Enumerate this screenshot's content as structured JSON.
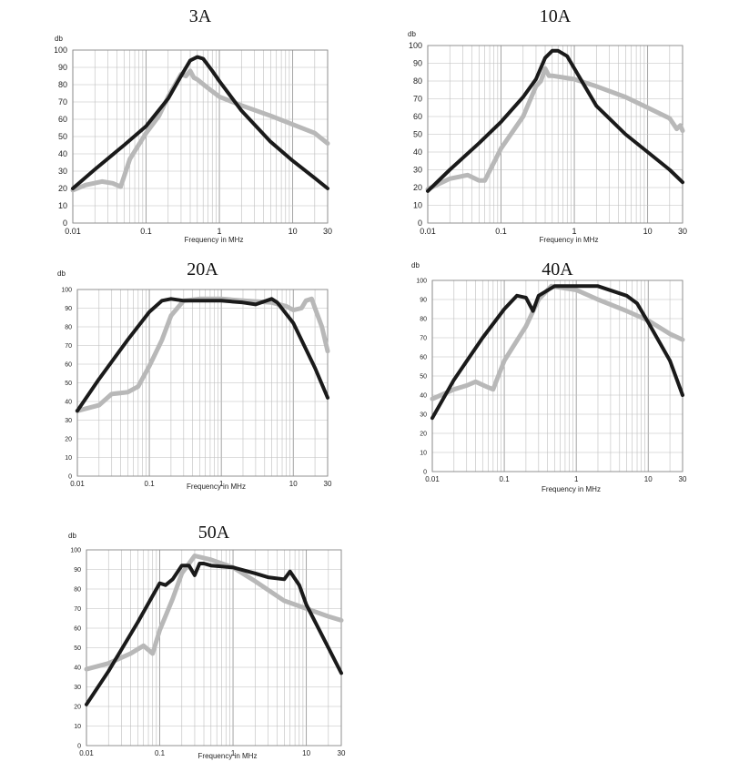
{
  "chart_data": [
    {
      "type": "line",
      "title": "3A",
      "ylabel": "db",
      "xlabel": "Frequency in MHz",
      "x_scale": "log",
      "xlim": [
        0.01,
        30
      ],
      "ylim": [
        0,
        100
      ],
      "grid": true,
      "x_ticks": [
        "0.01",
        "0.1",
        "1",
        "10",
        "30"
      ],
      "y_ticks": [
        "0",
        "10",
        "20",
        "30",
        "40",
        "50",
        "60",
        "70",
        "80",
        "90",
        "100"
      ],
      "series": [
        {
          "color": "#1a1a1a",
          "x": [
            0.01,
            0.02,
            0.05,
            0.1,
            0.2,
            0.3,
            0.4,
            0.5,
            0.6,
            0.8,
            1,
            2,
            5,
            10,
            20,
            30
          ],
          "y": [
            20,
            31,
            45,
            56,
            72,
            85,
            94,
            96,
            95,
            88,
            82,
            65,
            47,
            36,
            26,
            20
          ]
        },
        {
          "color": "#b8b8b8",
          "x": [
            0.01,
            0.015,
            0.025,
            0.035,
            0.045,
            0.06,
            0.1,
            0.15,
            0.2,
            0.3,
            0.35,
            0.4,
            0.45,
            0.5,
            0.7,
            1,
            2,
            5,
            10,
            20,
            30
          ],
          "y": [
            19,
            22,
            24,
            23,
            21,
            37,
            52,
            62,
            73,
            86,
            85,
            88,
            84,
            83,
            78,
            73,
            68,
            62,
            57,
            52,
            46
          ]
        }
      ]
    },
    {
      "type": "line",
      "title": "10A",
      "ylabel": "db",
      "xlabel": "Frequency in MHz",
      "x_scale": "log",
      "xlim": [
        0.01,
        30
      ],
      "ylim": [
        0,
        100
      ],
      "grid": true,
      "x_ticks": [
        "0.01",
        "0.1",
        "1",
        "10",
        "30"
      ],
      "y_ticks": [
        "0",
        "10",
        "20",
        "30",
        "40",
        "50",
        "60",
        "70",
        "80",
        "90",
        "100"
      ],
      "series": [
        {
          "color": "#1a1a1a",
          "x": [
            0.01,
            0.02,
            0.05,
            0.1,
            0.2,
            0.3,
            0.4,
            0.5,
            0.6,
            0.8,
            1,
            2,
            5,
            10,
            20,
            30
          ],
          "y": [
            18,
            30,
            45,
            57,
            71,
            81,
            93,
            97,
            97,
            94,
            87,
            66,
            50,
            40,
            30,
            23
          ]
        },
        {
          "color": "#b8b8b8",
          "x": [
            0.01,
            0.02,
            0.035,
            0.05,
            0.06,
            0.1,
            0.2,
            0.3,
            0.35,
            0.4,
            0.45,
            0.5,
            1,
            2,
            5,
            10,
            20,
            25,
            28,
            30
          ],
          "y": [
            19,
            25,
            27,
            24,
            24,
            42,
            60,
            77,
            80,
            87,
            83,
            83,
            81,
            77,
            71,
            65,
            59,
            53,
            55,
            52
          ]
        }
      ]
    },
    {
      "type": "line",
      "title": "20A",
      "ylabel": "db",
      "xlabel": "Frequency in MHz",
      "x_scale": "log",
      "xlim": [
        0.01,
        30
      ],
      "ylim": [
        0,
        100
      ],
      "grid": true,
      "x_ticks": [
        "0.01",
        "0.1",
        "1",
        "10",
        "30"
      ],
      "y_ticks": [
        "0",
        "10",
        "20",
        "30",
        "40",
        "50",
        "60",
        "70",
        "80",
        "90",
        "100"
      ],
      "series": [
        {
          "color": "#1a1a1a",
          "x": [
            0.01,
            0.02,
            0.05,
            0.1,
            0.15,
            0.2,
            0.3,
            0.5,
            1,
            2,
            3,
            5,
            6,
            10,
            20,
            30
          ],
          "y": [
            35,
            52,
            73,
            88,
            94,
            95,
            94,
            94,
            94,
            93,
            92,
            95,
            93,
            82,
            58,
            42
          ]
        },
        {
          "color": "#b8b8b8",
          "x": [
            0.01,
            0.02,
            0.03,
            0.05,
            0.07,
            0.1,
            0.15,
            0.2,
            0.3,
            0.5,
            1,
            2,
            5,
            8,
            10,
            13,
            15,
            18,
            20,
            25,
            30
          ],
          "y": [
            35,
            38,
            44,
            45,
            48,
            59,
            73,
            86,
            94,
            95,
            95,
            94,
            93,
            91,
            89,
            90,
            94,
            95,
            90,
            80,
            67
          ]
        }
      ]
    },
    {
      "type": "line",
      "title": "40A",
      "ylabel": "db",
      "xlabel": "Frequency in MHz",
      "x_scale": "log",
      "xlim": [
        0.01,
        30
      ],
      "ylim": [
        0,
        100
      ],
      "grid": true,
      "x_ticks": [
        "0.01",
        "0.1",
        "1",
        "10",
        "30"
      ],
      "y_ticks": [
        "0",
        "10",
        "20",
        "30",
        "40",
        "50",
        "60",
        "70",
        "80",
        "90",
        "100"
      ],
      "series": [
        {
          "color": "#1a1a1a",
          "x": [
            0.01,
            0.02,
            0.05,
            0.1,
            0.15,
            0.2,
            0.25,
            0.3,
            0.5,
            1,
            2,
            5,
            7,
            10,
            20,
            30
          ],
          "y": [
            28,
            48,
            70,
            85,
            92,
            91,
            84,
            92,
            97,
            97,
            97,
            92,
            88,
            78,
            58,
            40
          ]
        },
        {
          "color": "#b8b8b8",
          "x": [
            0.01,
            0.02,
            0.03,
            0.04,
            0.06,
            0.07,
            0.1,
            0.2,
            0.3,
            0.45,
            1,
            2,
            5,
            10,
            20,
            30
          ],
          "y": [
            38,
            43,
            45,
            47,
            44,
            43,
            58,
            76,
            90,
            97,
            95,
            90,
            84,
            79,
            72,
            69
          ]
        }
      ]
    },
    {
      "type": "line",
      "title": "50A",
      "ylabel": "db",
      "xlabel": "Frequency in MHz",
      "x_scale": "log",
      "xlim": [
        0.01,
        30
      ],
      "ylim": [
        0,
        100
      ],
      "grid": true,
      "x_ticks": [
        "0.01",
        "0.1",
        "1",
        "10",
        "30"
      ],
      "y_ticks": [
        "0",
        "10",
        "20",
        "30",
        "40",
        "50",
        "60",
        "70",
        "80",
        "90",
        "100"
      ],
      "series": [
        {
          "color": "#1a1a1a",
          "x": [
            0.01,
            0.02,
            0.05,
            0.1,
            0.12,
            0.15,
            0.2,
            0.25,
            0.3,
            0.35,
            0.4,
            0.5,
            1,
            2,
            3,
            5,
            6,
            8,
            10,
            20,
            30
          ],
          "y": [
            21,
            38,
            63,
            83,
            82,
            85,
            92,
            92,
            87,
            93,
            93,
            92,
            91,
            88,
            86,
            85,
            89,
            82,
            72,
            50,
            37
          ]
        },
        {
          "color": "#b8b8b8",
          "x": [
            0.01,
            0.02,
            0.04,
            0.06,
            0.08,
            0.1,
            0.15,
            0.2,
            0.3,
            0.5,
            1,
            2,
            5,
            10,
            20,
            30
          ],
          "y": [
            39,
            42,
            47,
            51,
            47,
            59,
            75,
            88,
            97,
            95,
            91,
            84,
            74,
            70,
            66,
            64
          ]
        }
      ]
    }
  ]
}
